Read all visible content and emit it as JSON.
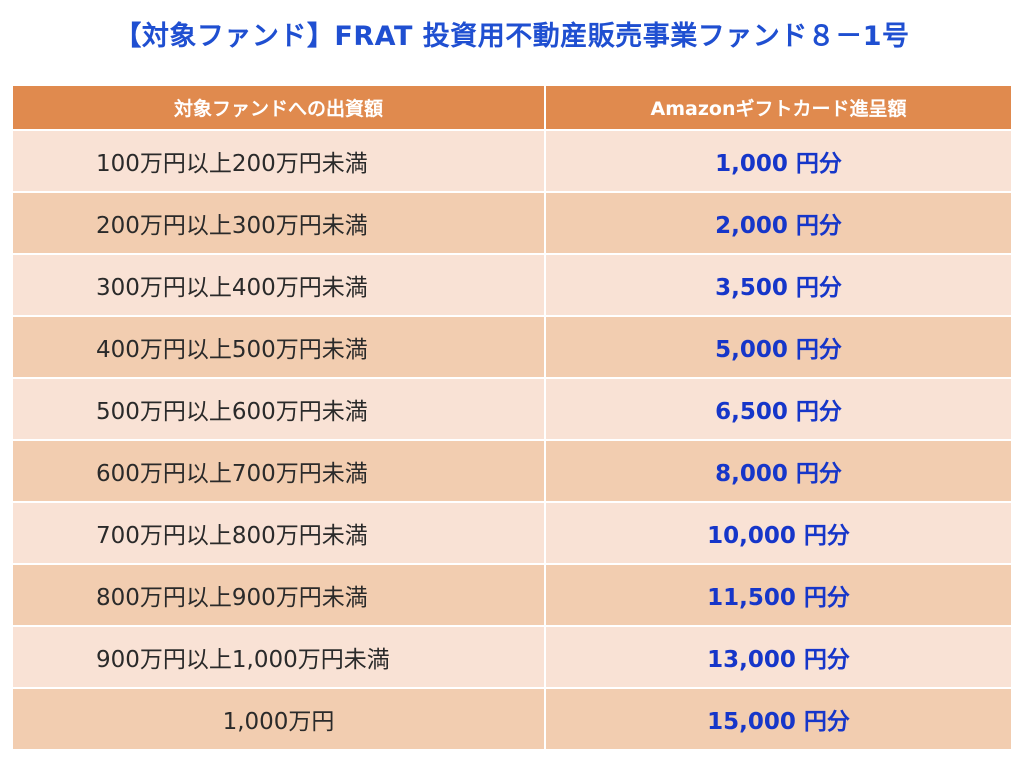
{
  "title": "【対象ファンド】FRAT 投資用不動産販売事業ファンド８－1号",
  "table": {
    "headers": [
      "対象ファンドへの出資額",
      "Amazonギフトカード進呈額"
    ],
    "rows": [
      {
        "amount": "100万円以上200万円未満",
        "gift": "1,000 円分"
      },
      {
        "amount": "200万円以上300万円未満",
        "gift": "2,000 円分"
      },
      {
        "amount": "300万円以上400万円未満",
        "gift": "3,500 円分"
      },
      {
        "amount": "400万円以上500万円未満",
        "gift": "5,000 円分"
      },
      {
        "amount": "500万円以上600万円未満",
        "gift": "6,500 円分"
      },
      {
        "amount": "600万円以上700万円未満",
        "gift": "8,000 円分"
      },
      {
        "amount": "700万円以上800万円未満",
        "gift": "10,000 円分"
      },
      {
        "amount": "800万円以上900万円未満",
        "gift": "11,500 円分"
      },
      {
        "amount": "900万円以上1,000万円未満",
        "gift": "13,000 円分"
      },
      {
        "amount": "1,000万円",
        "gift": "15,000 円分"
      }
    ]
  },
  "colors": {
    "title": "#1f4fd1",
    "header_bg": "#e08a4e",
    "row_light": "#f9e2d5",
    "row_dark": "#f2cdb0",
    "gift_text": "#1636c9"
  }
}
